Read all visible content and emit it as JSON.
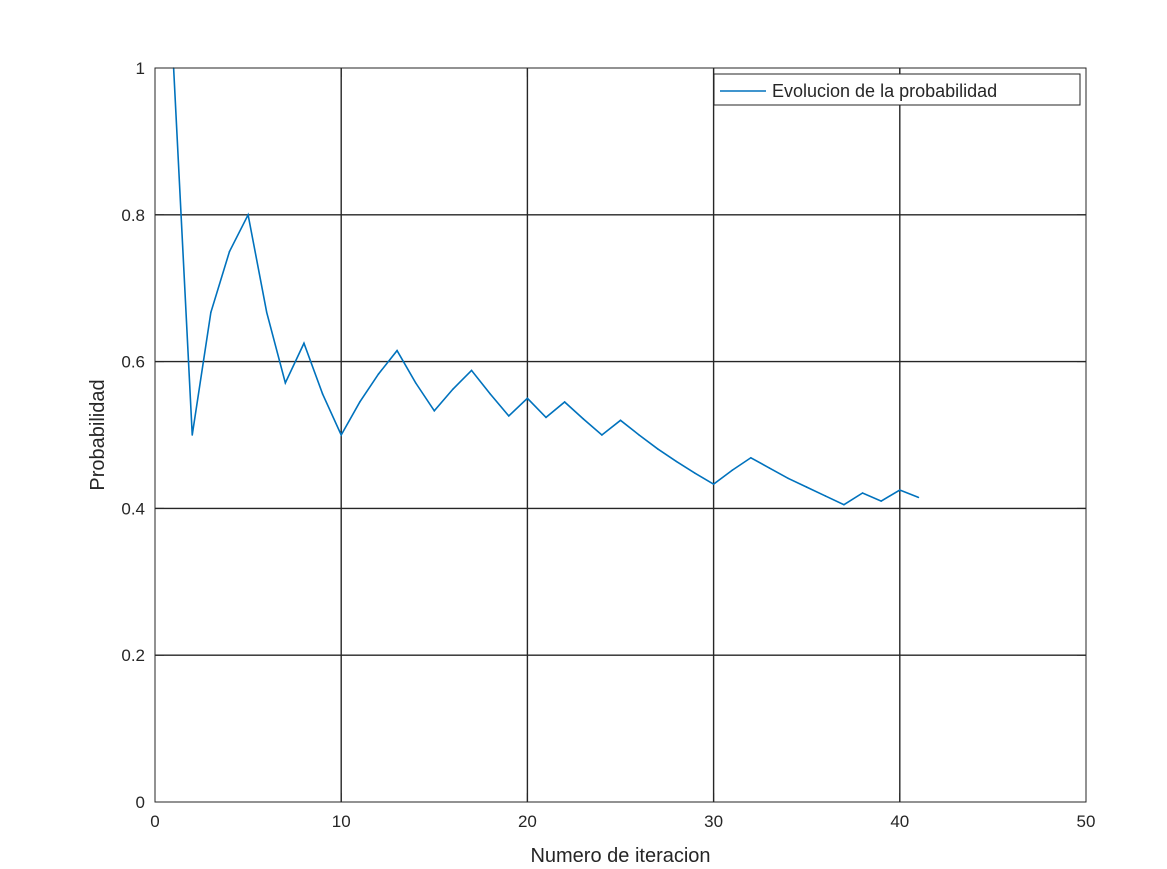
{
  "chart_data": {
    "type": "line",
    "xlabel": "Numero de iteracion",
    "ylabel": "Probabilidad",
    "xlim": [
      0,
      50
    ],
    "ylim": [
      0,
      1
    ],
    "xticks": [
      "0",
      "10",
      "20",
      "30",
      "40",
      "50"
    ],
    "yticks": [
      "0",
      "0.2",
      "0.4",
      "0.6",
      "0.8",
      "1"
    ],
    "grid": true,
    "legend_position": "top-right",
    "series": [
      {
        "name": "Evolucion de la probabilidad",
        "color": "#0072BD",
        "x": [
          1,
          2,
          3,
          4,
          5,
          6,
          7,
          8,
          9,
          10,
          11,
          12,
          13,
          14,
          15,
          16,
          17,
          18,
          19,
          20,
          21,
          22,
          23,
          24,
          25,
          26,
          27,
          28,
          29,
          30,
          31,
          32,
          33,
          34,
          35,
          36,
          37,
          38,
          39,
          40,
          41
        ],
        "values": [
          1.0,
          0.5,
          0.667,
          0.75,
          0.8,
          0.667,
          0.571,
          0.625,
          0.556,
          0.5,
          0.545,
          0.583,
          0.615,
          0.571,
          0.533,
          0.5625,
          0.588,
          0.556,
          0.526,
          0.55,
          0.524,
          0.545,
          0.522,
          0.5,
          0.52,
          0.5,
          0.481,
          0.464,
          0.448,
          0.433,
          0.452,
          0.469,
          0.455,
          0.441,
          0.429,
          0.417,
          0.405,
          0.421,
          0.41,
          0.425,
          0.415
        ]
      }
    ]
  }
}
